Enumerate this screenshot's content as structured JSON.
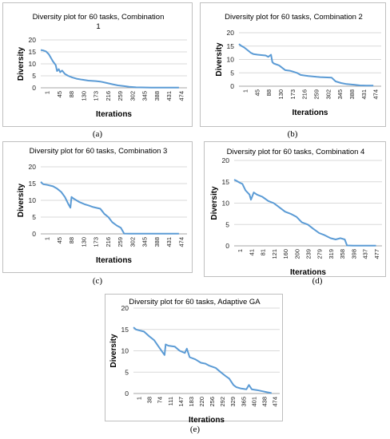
{
  "chart_data": [
    {
      "type": "line",
      "title_lines": [
        "Diversity plot for 60 tasks, Combination",
        "1"
      ],
      "caption": "(a)",
      "xlabel": "Iterations",
      "ylabel": "Diversity",
      "ylim": [
        0,
        20
      ],
      "yticks": [
        "0",
        "5",
        "10",
        "15",
        "20"
      ],
      "xticks": [
        "1",
        "45",
        "88",
        "130",
        "173",
        "216",
        "259",
        "302",
        "345",
        "388",
        "431",
        "474"
      ],
      "x": [
        1,
        10,
        20,
        30,
        45,
        55,
        60,
        66,
        71,
        78,
        88,
        100,
        115,
        130,
        150,
        173,
        200,
        216,
        240,
        259,
        280,
        302,
        320,
        345,
        400,
        500
      ],
      "values": [
        15.8,
        15.6,
        15.2,
        14.0,
        11.0,
        9.5,
        7.0,
        7.8,
        6.5,
        7.2,
        5.8,
        5.0,
        4.3,
        3.8,
        3.4,
        3.0,
        2.8,
        2.6,
        2.0,
        1.5,
        1.0,
        0.7,
        0.4,
        0.2,
        0.1,
        0.1
      ]
    },
    {
      "type": "line",
      "title_lines": [
        "Diversity plot for 60 tasks, Combination 2"
      ],
      "caption": "(b)",
      "xlabel": "Iterations",
      "ylabel": "Diversity",
      "ylim": [
        0,
        20
      ],
      "yticks": [
        "0",
        "5",
        "10",
        "15",
        "20"
      ],
      "xticks": [
        "1",
        "45",
        "88",
        "130",
        "173",
        "216",
        "259",
        "302",
        "345",
        "388",
        "431",
        "474"
      ],
      "x": [
        1,
        8,
        20,
        35,
        45,
        55,
        70,
        88,
        100,
        110,
        120,
        125,
        130,
        150,
        173,
        190,
        200,
        216,
        230,
        259,
        290,
        302,
        320,
        345,
        360,
        380,
        400,
        431,
        450,
        474,
        500
      ],
      "values": [
        15.8,
        15.2,
        14.5,
        13.3,
        12.5,
        12.0,
        11.8,
        11.6,
        11.5,
        11.0,
        11.8,
        9.0,
        8.5,
        7.8,
        6.0,
        5.8,
        5.5,
        5.0,
        4.2,
        3.8,
        3.5,
        3.4,
        3.3,
        3.2,
        1.8,
        1.2,
        0.8,
        0.5,
        0.3,
        0.2,
        0.2
      ]
    },
    {
      "type": "line",
      "title_lines": [
        "Diversity plot for 60 tasks, Combination 3"
      ],
      "caption": "(c)",
      "xlabel": "Iterations",
      "ylabel": "Diversity",
      "ylim": [
        0,
        20
      ],
      "yticks": [
        "0",
        "5",
        "10",
        "15",
        "20"
      ],
      "xticks": [
        "1",
        "45",
        "88",
        "130",
        "173",
        "216",
        "259",
        "302",
        "345",
        "388",
        "431",
        "474"
      ],
      "x": [
        1,
        10,
        25,
        45,
        60,
        75,
        88,
        100,
        108,
        112,
        120,
        140,
        160,
        173,
        190,
        216,
        230,
        245,
        259,
        275,
        290,
        302,
        320,
        345,
        400,
        500
      ],
      "values": [
        15.5,
        14.8,
        14.6,
        14.2,
        13.5,
        12.5,
        11.0,
        9.0,
        7.8,
        11.0,
        10.5,
        9.5,
        8.8,
        8.5,
        8.0,
        7.5,
        6.0,
        5.0,
        3.5,
        2.5,
        1.8,
        0.1,
        0.05,
        0.05,
        0.05,
        0.05
      ]
    },
    {
      "type": "line",
      "title_lines": [
        "Diversity plot for 60 tasks, Combination 4"
      ],
      "caption": "(d)",
      "xlabel": "Iterations",
      "ylabel": "Diversity",
      "ylim": [
        0,
        20
      ],
      "yticks": [
        "0",
        "5",
        "10",
        "15",
        "20"
      ],
      "xticks": [
        "1",
        "41",
        "81",
        "121",
        "160",
        "200",
        "239",
        "279",
        "319",
        "358",
        "398",
        "437",
        "477"
      ],
      "x": [
        1,
        10,
        20,
        30,
        41,
        55,
        60,
        70,
        81,
        100,
        121,
        140,
        160,
        180,
        200,
        220,
        239,
        260,
        279,
        300,
        319,
        340,
        358,
        375,
        390,
        398,
        420,
        477,
        500
      ],
      "values": [
        15.5,
        15.2,
        14.8,
        14.5,
        13.0,
        12.0,
        10.8,
        12.5,
        12.0,
        11.5,
        10.5,
        10.0,
        9.0,
        8.0,
        7.5,
        6.8,
        5.5,
        5.0,
        4.0,
        3.0,
        2.5,
        1.8,
        1.5,
        1.8,
        1.5,
        0.1,
        0.05,
        0.05,
        0.05
      ]
    },
    {
      "type": "line",
      "title_lines": [
        "Diversity plot for 60 tasks, Adaptive GA"
      ],
      "caption": "(e)",
      "xlabel": "Iterations",
      "ylabel": "Diversity",
      "ylim": [
        0,
        20
      ],
      "yticks": [
        "0",
        "5",
        "10",
        "15",
        "20"
      ],
      "xticks": [
        "1",
        "38",
        "74",
        "111",
        "147",
        "183",
        "220",
        "256",
        "292",
        "329",
        "365",
        "401",
        "438",
        "474"
      ],
      "x": [
        1,
        10,
        20,
        38,
        55,
        74,
        90,
        111,
        115,
        125,
        147,
        165,
        183,
        190,
        200,
        220,
        240,
        256,
        270,
        292,
        310,
        329,
        340,
        355,
        365,
        380,
        401,
        410,
        420,
        438,
        460,
        474,
        490
      ],
      "values": [
        15.5,
        15.0,
        14.8,
        14.5,
        13.5,
        12.5,
        11.0,
        9.0,
        11.5,
        11.2,
        11.0,
        10.0,
        9.5,
        10.5,
        8.5,
        8.0,
        7.2,
        7.0,
        6.5,
        6.0,
        5.0,
        4.0,
        3.5,
        2.0,
        1.5,
        1.2,
        1.0,
        2.0,
        1.0,
        0.8,
        0.5,
        0.3,
        0.1
      ]
    }
  ]
}
